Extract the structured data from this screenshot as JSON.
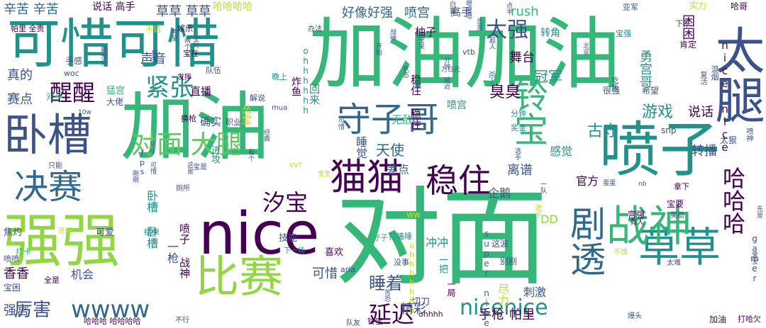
{
  "palette": {
    "dark_purple": "#440154",
    "indigo": "#3b528b",
    "blue_teal": "#31688e",
    "teal": "#21918c",
    "green_teal": "#35b779",
    "green": "#5ec962",
    "yellow_green": "#90d743",
    "yellow": "#c8e020"
  },
  "words": [
    {
      "text": "对面",
      "size": 150,
      "color": "#35b779",
      "weight": 400
    },
    {
      "text": "加油加油",
      "size": 110,
      "color": "#35b779",
      "weight": 400
    },
    {
      "text": "加油",
      "size": 105,
      "color": "#35b779",
      "weight": 400
    },
    {
      "text": "可惜可惜",
      "size": 75,
      "color": "#21918c",
      "weight": 400
    },
    {
      "text": "nice",
      "size": 82,
      "color": "#440154",
      "weight": 400
    },
    {
      "text": "喷子",
      "size": 85,
      "color": "#21918c",
      "weight": 400
    },
    {
      "text": "强强",
      "size": 82,
      "color": "#90d743",
      "weight": 400
    },
    {
      "text": "太腿",
      "size": 70,
      "color": "#3b528b",
      "weight": 400
    },
    {
      "text": "卧槽",
      "size": 62,
      "color": "#3b528b",
      "weight": 400
    },
    {
      "text": "比赛",
      "size": 62,
      "color": "#90d743",
      "weight": 400
    },
    {
      "text": "草草",
      "size": 58,
      "color": "#21918c",
      "weight": 400
    },
    {
      "text": "战神",
      "size": 60,
      "color": "#35b779",
      "weight": 400
    },
    {
      "text": "猫猫",
      "size": 52,
      "color": "#440154",
      "weight": 400
    },
    {
      "text": "剧透",
      "size": 50,
      "color": "#31688e",
      "weight": 400
    },
    {
      "text": "守子哥",
      "size": 48,
      "color": "#31688e",
      "weight": 400
    },
    {
      "text": "决赛",
      "size": 48,
      "color": "#31688e",
      "weight": 400
    },
    {
      "text": "稳住",
      "size": 46,
      "color": "#440154",
      "weight": 400
    },
    {
      "text": "铃宝",
      "size": 48,
      "color": "#35b779",
      "weight": 400
    },
    {
      "text": "对面 大腿",
      "size": 36,
      "color": "#5ec962",
      "weight": 400
    },
    {
      "text": "wwww",
      "size": 34,
      "color": "#31688e",
      "weight": 400
    },
    {
      "text": "紧张",
      "size": 34,
      "color": "#21918c",
      "weight": 400
    },
    {
      "text": "醒醒",
      "size": 32,
      "color": "#440154",
      "weight": 400
    },
    {
      "text": "汐宝",
      "size": 32,
      "color": "#440154",
      "weight": 400
    },
    {
      "text": "nicenice",
      "size": 30,
      "color": "#21918c",
      "weight": 400
    },
    {
      "text": "延迟",
      "size": 32,
      "color": "#440154",
      "weight": 400
    },
    {
      "text": "哈哈哈",
      "size": 32,
      "color": "#440154",
      "weight": 400
    },
    {
      "text": "太强",
      "size": 30,
      "color": "#3b528b",
      "weight": 400
    },
    {
      "text": "厉害",
      "size": 26,
      "color": "#3b528b",
      "weight": 400
    },
    {
      "text": "睡着",
      "size": 24,
      "color": "#3b528b",
      "weight": 400
    },
    {
      "text": "游戏",
      "size": 22,
      "color": "#21918c",
      "weight": 400
    },
    {
      "text": "古守",
      "size": 22,
      "color": "#21918c",
      "weight": 400
    },
    {
      "text": "臭臭",
      "size": 22,
      "color": "#440154",
      "weight": 400
    },
    {
      "text": "天使",
      "size": 20,
      "color": "#31688e",
      "weight": 400
    },
    {
      "text": "冠军",
      "size": 20,
      "color": "#21918c",
      "weight": 400
    },
    {
      "text": "舞台",
      "size": 18,
      "color": "#440154",
      "weight": 400
    },
    {
      "text": "说话",
      "size": 18,
      "color": "#440154",
      "weight": 400
    },
    {
      "text": "转播",
      "size": 18,
      "color": "#3b528b",
      "weight": 400
    },
    {
      "text": "勇宫哥",
      "size": 18,
      "color": "#21918c",
      "weight": 400
    },
    {
      "text": "辛苦 辛苦",
      "size": 18,
      "color": "#31688e",
      "weight": 400
    },
    {
      "text": "草草 草草",
      "size": 18,
      "color": "#3b528b",
      "weight": 400
    },
    {
      "text": "好像好强",
      "size": 18,
      "color": "#31688e",
      "weight": 400
    },
    {
      "text": "喷宫",
      "size": 18,
      "color": "#31688e",
      "weight": 400
    },
    {
      "text": "rush",
      "size": 18,
      "color": "#35b779",
      "weight": 400
    },
    {
      "text": "困困",
      "size": 18,
      "color": "#440154",
      "weight": 400
    },
    {
      "text": "声音",
      "size": 18,
      "color": "#3b528b",
      "weight": 400
    },
    {
      "text": "真的",
      "size": 18,
      "color": "#3b528b",
      "weight": 400
    },
    {
      "text": "赛点",
      "size": 18,
      "color": "#3b528b",
      "weight": 400
    },
    {
      "text": "香香",
      "size": 18,
      "color": "#440154",
      "weight": 400
    },
    {
      "text": "强宫",
      "size": 18,
      "color": "#3b528b",
      "weight": 400
    },
    {
      "text": "可惜",
      "size": 18,
      "color": "#3b528b",
      "weight": 400
    },
    {
      "text": "精彩",
      "size": 18,
      "color": "#3b528b",
      "weight": 400
    },
    {
      "text": "手枪",
      "size": 18,
      "color": "#440154",
      "weight": 400
    },
    {
      "text": "帕里",
      "size": 18,
      "color": "#440154",
      "weight": 400
    },
    {
      "text": "差点",
      "size": 16,
      "color": "#31688e",
      "weight": 400
    },
    {
      "text": "离谱",
      "size": 18,
      "color": "#3b528b",
      "weight": 400
    },
    {
      "text": "感觉",
      "size": 16,
      "color": "#21918c",
      "weight": 400
    },
    {
      "text": "官方",
      "size": 16,
      "color": "#440154",
      "weight": 400
    },
    {
      "text": "企鹅",
      "size": 16,
      "color": "#3b528b",
      "weight": 400
    },
    {
      "text": "DD",
      "size": 16,
      "color": "#90d743",
      "weight": 400
    },
    {
      "text": "刺激",
      "size": 16,
      "color": "#3b528b",
      "weight": 400
    },
    {
      "text": "尽力",
      "size": 16,
      "color": "#c8e020",
      "weight": 400
    },
    {
      "text": "睡觉",
      "size": 16,
      "color": "#3b528b",
      "weight": 400
    },
    {
      "text": "冲冲",
      "size": 16,
      "color": "#21918c",
      "weight": 400
    },
    {
      "text": "机会",
      "size": 16,
      "color": "#3b528b",
      "weight": 400
    },
    {
      "text": "直播",
      "size": 15,
      "color": "#440154",
      "weight": 400
    },
    {
      "text": "确实",
      "size": 15,
      "color": "#3b528b",
      "weight": 400
    },
    {
      "text": "无敌",
      "size": 15,
      "color": "#35b779",
      "weight": 400
    },
    {
      "text": "柚子",
      "size": 15,
      "color": "#440154",
      "weight": 400
    },
    {
      "text": "高手",
      "size": 15,
      "color": "#3b528b",
      "weight": 400
    },
    {
      "text": "转角",
      "size": 14,
      "color": "#21918c",
      "weight": 400
    },
    {
      "text": "说话 高手",
      "size": 14,
      "color": "#440154",
      "weight": 400
    },
    {
      "text": "哈哈哈哈",
      "size": 14,
      "color": "#c8e020",
      "weight": 400
    },
    {
      "text": "怂宝",
      "size": 14,
      "color": "#c8e020",
      "weight": 400
    },
    {
      "text": "进攻",
      "size": 13,
      "color": "#21918c",
      "weight": 400
    },
    {
      "text": "技能",
      "size": 13,
      "color": "#3b528b",
      "weight": 400
    },
    {
      "text": "可爱",
      "size": 13,
      "color": "#3b528b",
      "weight": 400
    },
    {
      "text": "焦灼",
      "size": 13,
      "color": "#3b528b",
      "weight": 400
    },
    {
      "text": "猛宫",
      "size": 13,
      "color": "#35b779",
      "weight": 400
    },
    {
      "text": "手感",
      "size": 12,
      "color": "#3b528b",
      "weight": 400
    },
    {
      "text": "对手",
      "size": 12,
      "color": "#35b779",
      "weight": 400
    },
    {
      "text": "大佬",
      "size": 12,
      "color": "#3b528b",
      "weight": 400
    },
    {
      "text": "一把",
      "size": 13,
      "color": "#21918c",
      "weight": 400
    },
    {
      "text": "一局",
      "size": 12,
      "color": "#440154",
      "weight": 400
    },
    {
      "text": "喜欢",
      "size": 13,
      "color": "#440154",
      "weight": 400
    },
    {
      "text": "切刀",
      "size": 13,
      "color": "#3b528b",
      "weight": 400
    },
    {
      "text": "这波",
      "size": 12,
      "color": "#3b528b",
      "weight": 400
    },
    {
      "text": "别剧",
      "size": 12,
      "color": "#3b528b",
      "weight": 400
    },
    {
      "text": "super nice",
      "size": 12,
      "color": "#31688e",
      "weight": 400
    },
    {
      "text": "宫强",
      "size": 12,
      "color": "#440154",
      "weight": 400
    },
    {
      "text": "宝要",
      "size": 12,
      "color": "#440154",
      "weight": 400
    },
    {
      "text": "奖励",
      "size": 10,
      "color": "#3b528b",
      "weight": 400
    },
    {
      "text": "很强",
      "size": 12,
      "color": "#3b528b",
      "weight": 400
    },
    {
      "text": "希望",
      "size": 12,
      "color": "#3b528b",
      "weight": 400
    },
    {
      "text": "太狠",
      "size": 12,
      "color": "#3b528b",
      "weight": 400
    },
    {
      "text": "拿下",
      "size": 11,
      "color": "#440154",
      "weight": 400
    },
    {
      "text": "实力",
      "size": 12,
      "color": "#c8e020",
      "weight": 400
    },
    {
      "text": "哈哥",
      "size": 12,
      "color": "#440154",
      "weight": 400
    },
    {
      "text": "肯定",
      "size": 12,
      "color": "#440154",
      "weight": 400
    },
    {
      "text": "宝强",
      "size": 11,
      "color": "#21918c",
      "weight": 400
    },
    {
      "text": "亚军",
      "size": 11,
      "color": "#3b528b",
      "weight": 400
    },
    {
      "text": "下午",
      "size": 11,
      "color": "#3b528b",
      "weight": 400
    },
    {
      "text": "晚上",
      "size": 11,
      "color": "#21918c",
      "weight": 400
    },
    {
      "text": "杀人",
      "size": 11,
      "color": "#21918c",
      "weight": 400
    },
    {
      "text": "分钟",
      "size": 11,
      "color": "#21918c",
      "weight": 400
    },
    {
      "text": "奖金",
      "size": 11,
      "color": "#21918c",
      "weight": 400
    },
    {
      "text": "snp",
      "size": 12,
      "color": "#3b528b",
      "weight": 400
    },
    {
      "text": "ohhhhhh",
      "size": 12,
      "color": "#21918c",
      "weight": 400
    },
    {
      "text": "ohhhh",
      "size": 11,
      "color": "#440154",
      "weight": 400
    },
    {
      "text": "ww",
      "size": 12,
      "color": "#c8e020",
      "weight": 400
    },
    {
      "text": "aria",
      "size": 11,
      "color": "#3b528b",
      "weight": 400
    },
    {
      "text": "fps",
      "size": 11,
      "color": "#3b528b",
      "weight": 400
    },
    {
      "text": "vtb",
      "size": 11,
      "color": "#3b528b",
      "weight": 400
    },
    {
      "text": "gamer",
      "size": 12,
      "color": "#3b528b",
      "weight": 400
    },
    {
      "text": "10w",
      "size": 9,
      "color": "#3b528b",
      "weight": 400
    },
    {
      "text": "mua",
      "size": 10,
      "color": "#3b528b",
      "weight": 400
    },
    {
      "text": "woc",
      "size": 11,
      "color": "#3b528b",
      "weight": 400
    },
    {
      "text": "nb",
      "size": 9,
      "color": "#3b528b",
      "weight": 400
    },
    {
      "text": "宝困",
      "size": 12,
      "color": "#3b528b",
      "weight": 400
    },
    {
      "text": "喷喷",
      "size": 11,
      "color": "#3b528b",
      "weight": 400
    },
    {
      "text": "哈哈哈 哈哈哈哈",
      "size": 11,
      "color": "#440154",
      "weight": 400
    },
    {
      "text": "不行",
      "size": 10,
      "color": "#3b528b",
      "weight": 400
    },
    {
      "text": "铃宝",
      "size": 11,
      "color": "#440154",
      "weight": 400
    },
    {
      "text": "队友",
      "size": 10,
      "color": "#3b528b",
      "weight": 400
    },
    {
      "text": "全是",
      "size": 11,
      "color": "#440154",
      "weight": 400
    },
    {
      "text": "打卡",
      "size": 11,
      "color": "#35b779",
      "weight": 400
    },
    {
      "text": "没事",
      "size": 11,
      "color": "#3b528b",
      "weight": 400
    },
    {
      "text": "守子",
      "size": 11,
      "color": "#35b779",
      "weight": 400
    },
    {
      "text": "下一场",
      "size": 10,
      "color": "#21918c",
      "weight": 400
    },
    {
      "text": "打瞌睡",
      "size": 11,
      "color": "#21918c",
      "weight": 400
    },
    {
      "text": "有人",
      "size": 10,
      "color": "#440154",
      "weight": 400
    },
    {
      "text": "打哈欠",
      "size": 11,
      "color": "#440154",
      "weight": 400
    },
    {
      "text": "加油",
      "size": 12,
      "color": "#440154",
      "weight": 400
    },
    {
      "text": "爆头",
      "size": 10,
      "color": "#3b528b",
      "weight": 400
    },
    {
      "text": "不愧",
      "size": 10,
      "color": "#c8e020",
      "weight": 400
    },
    {
      "text": "太难",
      "size": 10,
      "color": "#3b528b",
      "weight": 400
    },
    {
      "text": "帕里 全责",
      "size": 11,
      "color": "#440154",
      "weight": 400
    },
    {
      "text": "娱乐",
      "size": 11,
      "color": "#440154",
      "weight": 400
    },
    {
      "text": "不错",
      "size": 11,
      "color": "#c8e020",
      "weight": 400
    },
    {
      "text": "宝在",
      "size": 11,
      "color": "#440154",
      "weight": 400
    },
    {
      "text": "队伍",
      "size": 11,
      "color": "#3b528b",
      "weight": 400
    },
    {
      "text": "职业",
      "size": 11,
      "color": "#3b528b",
      "weight": 400
    },
    {
      "text": "换枪",
      "size": 11,
      "color": "#440154",
      "weight": 400
    },
    {
      "text": "只能",
      "size": 10,
      "color": "#3b528b",
      "weight": 400
    },
    {
      "text": "宝是",
      "size": 10,
      "color": "#3b528b",
      "weight": 400
    },
    {
      "text": "厕所",
      "size": 10,
      "color": "#3b528b",
      "weight": 400
    },
    {
      "text": "结束",
      "size": 11,
      "color": "#21918c",
      "weight": 400
    },
    {
      "text": "还好",
      "size": 10,
      "color": "#c8e020",
      "weight": 400
    },
    {
      "text": "发挥",
      "size": 10,
      "color": "#440154",
      "weight": 400
    },
    {
      "text": "解说",
      "size": 11,
      "color": "#3b528b",
      "weight": 400
    },
    {
      "text": "办法",
      "size": 10,
      "color": "#3b528b",
      "weight": 400
    },
    {
      "text": "两个",
      "size": 9,
      "color": "#3b528b",
      "weight": 400
    },
    {
      "text": "全对",
      "size": 9,
      "color": "#3b528b",
      "weight": 400
    },
    {
      "text": "希望",
      "size": 9,
      "color": "#3b528b",
      "weight": 400
    },
    {
      "text": "剃光头",
      "size": 9,
      "color": "#3b528b",
      "weight": 400
    },
    {
      "text": "好猴",
      "size": 9,
      "color": "#3b528b",
      "weight": 400
    },
    {
      "text": "剛剛",
      "size": 9,
      "color": "#3b528b",
      "weight": 400
    },
    {
      "text": "这是",
      "size": 9,
      "color": "#3b528b",
      "weight": 400
    },
    {
      "text": "有个",
      "size": 9,
      "color": "#3b528b",
      "weight": 400
    },
    {
      "text": "VVT",
      "size": 9,
      "color": "#c8e020",
      "weight": 400
    },
    {
      "text": "一队",
      "size": 9,
      "color": "#3b528b",
      "weight": 400
    },
    {
      "text": "选手",
      "size": 9,
      "color": "#3b528b",
      "weight": 400
    },
    {
      "text": "洗手",
      "size": 10,
      "color": "#c8e020",
      "weight": 400
    },
    {
      "text": "万日元",
      "size": 9,
      "color": "#3b528b",
      "weight": 400
    },
    {
      "text": "分钟 延迟",
      "size": 9,
      "color": "#3b528b",
      "weight": 400
    },
    {
      "text": "超人",
      "size": 9,
      "color": "#3b528b",
      "weight": 400
    },
    {
      "text": "宝来",
      "size": 9,
      "color": "#3b528b",
      "weight": 400
    },
    {
      "text": "怂宫",
      "size": 9,
      "color": "#3b528b",
      "weight": 400
    },
    {
      "text": "蛋蛋",
      "size": 9,
      "color": "#3b528b",
      "weight": 400
    },
    {
      "text": "宝宝",
      "size": 9,
      "color": "#c8e020",
      "weight": 400
    },
    {
      "text": "经典",
      "size": 9,
      "color": "#3b528b",
      "weight": 400
    },
    {
      "text": "可惜",
      "size": 9,
      "color": "#3b528b",
      "weight": 400
    },
    {
      "text": "gg 可惜",
      "size": 9,
      "color": "#3b528b",
      "weight": 400
    },
    {
      "text": "混烟",
      "size": 11,
      "color": "#3b528b",
      "weight": 400
    },
    {
      "text": "复活",
      "size": 10,
      "color": "#3b528b",
      "weight": 400
    },
    {
      "text": "吃饭",
      "size": 10,
      "color": "#3b528b",
      "weight": 400
    },
    {
      "text": "喷神",
      "size": 10,
      "color": "#3b528b",
      "weight": 400
    },
    {
      "text": "点半",
      "size": 9,
      "color": "#3b528b",
      "weight": 400
    },
    {
      "text": "白猫",
      "size": 9,
      "color": "#3b528b",
      "weight": 400
    },
    {
      "text": "嗯嗯嗯",
      "size": 9,
      "color": "#3b528b",
      "weight": 400
    },
    {
      "text": "状态",
      "size": 9,
      "color": "#3b528b",
      "weight": 400
    },
    {
      "text": "北京",
      "size": 9,
      "color": "#3b528b",
      "weight": 400
    },
    {
      "text": "苦恐",
      "size": 9,
      "color": "#3b528b",
      "weight": 400
    },
    {
      "text": "宝宝",
      "size": 9,
      "color": "#3b528b",
      "weight": 400
    },
    {
      "text": "先是",
      "size": 9,
      "color": "#3b528b",
      "weight": 400
    },
    {
      "text": "战神",
      "size": 9,
      "color": "#3b528b",
      "weight": 400
    },
    {
      "text": "开始",
      "size": 9,
      "color": "#3b528b",
      "weight": 400
    },
    {
      "text": "稳住 稳住",
      "size": 15,
      "color": "#440154",
      "weight": 400
    },
    {
      "text": "回来",
      "size": 15,
      "color": "#21918c",
      "weight": 400
    },
    {
      "text": "喷宫",
      "size": 14,
      "color": "#21918c",
      "weight": 400
    },
    {
      "text": "卧槽 卧槽",
      "size": 16,
      "color": "#21918c",
      "weight": 400
    },
    {
      "text": "一枪",
      "size": 16,
      "color": "#3b528b",
      "weight": 400
    },
    {
      "text": "喷子 战神",
      "size": 15,
      "color": "#440154",
      "weight": 400
    },
    {
      "text": "炸鱼",
      "size": 14,
      "color": "#440154",
      "weight": 400
    },
    {
      "text": "nice nice",
      "size": 15,
      "color": "#440154",
      "weight": 400
    },
    {
      "text": "ohhhhhhh",
      "size": 11,
      "color": "#c8e020",
      "weight": 400
    },
    {
      "text": "ohhhhhhh",
      "size": 11,
      "color": "#440154",
      "weight": 400
    },
    {
      "text": "防守",
      "size": 16,
      "color": "#21918c",
      "weight": 400
    }
  ]
}
